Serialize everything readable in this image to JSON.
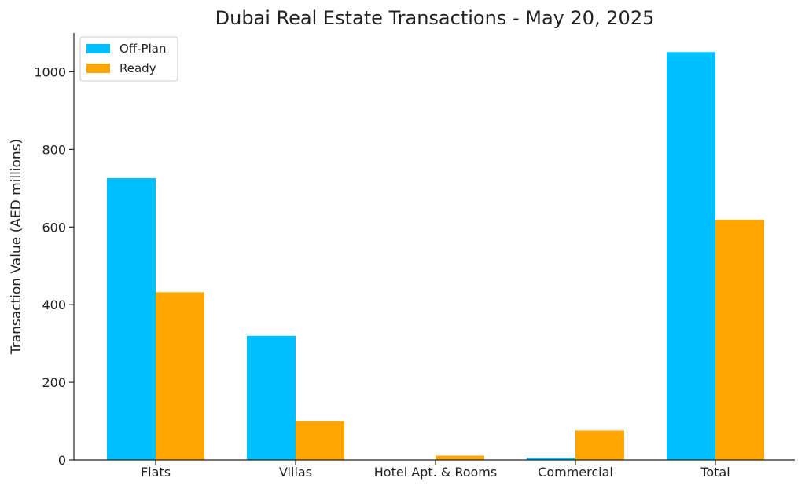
{
  "chart_data": {
    "type": "bar",
    "title": "Dubai Real Estate Transactions - May 20, 2025",
    "xlabel": "",
    "ylabel": "Transaction Value (AED millions)",
    "categories": [
      "Flats",
      "Villas",
      "Hotel Apt. & Rooms",
      "Commercial",
      "Total"
    ],
    "series": [
      {
        "name": "Off-Plan",
        "color": "#00BFFF",
        "values": [
          726,
          320,
          0,
          5,
          1051
        ]
      },
      {
        "name": "Ready",
        "color": "#FFA500",
        "values": [
          432,
          100,
          11,
          76,
          619
        ]
      }
    ],
    "ylim": [
      0,
      1100
    ],
    "yticks": [
      0,
      200,
      400,
      600,
      800,
      1000
    ],
    "grid": false,
    "legend_position": "top-left"
  }
}
